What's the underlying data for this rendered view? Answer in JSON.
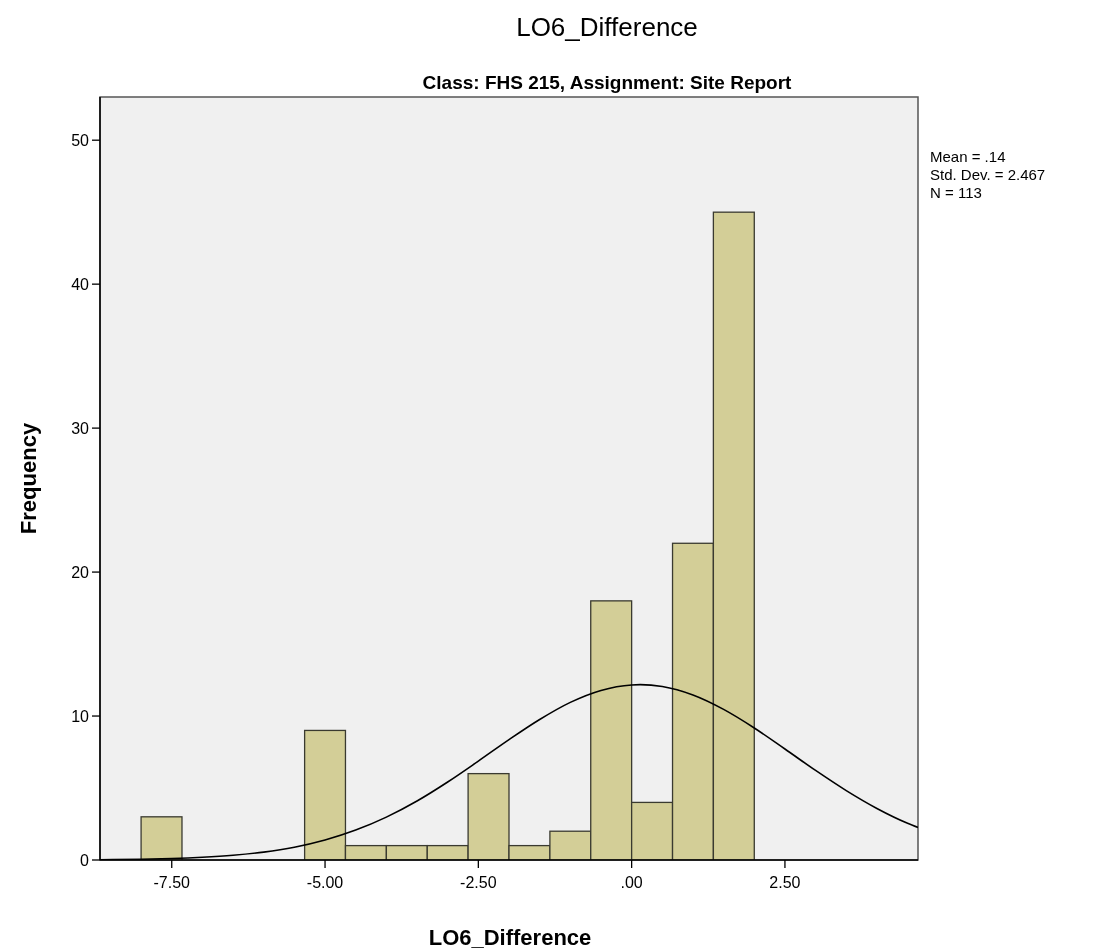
{
  "chart_data": {
    "type": "histogram",
    "title": "LO6_Difference",
    "subtitle": "Class: FHS 215, Assignment: Site Report",
    "xlabel": "LO6_Difference",
    "ylabel": "Frequency",
    "bins": [
      -8,
      -7.333,
      -6.667,
      -6,
      -5.333,
      -4.667,
      -4,
      -3.333,
      -2.667,
      -2,
      -1.333,
      -0.667,
      0,
      0.667,
      1.333,
      2
    ],
    "series": [
      {
        "color": "#d3ce97",
        "values": [
          3,
          0,
          0,
          0,
          9,
          1,
          1,
          1,
          6,
          1,
          2,
          18,
          4,
          22,
          45
        ]
      },
      {
        "type": "line",
        "color": "#000000",
        "x": [
          -8.67,
          -8,
          -7.5,
          -7,
          -6.5,
          -6,
          -5.5,
          -5,
          -4.5,
          -4,
          -3.5,
          -3,
          -2.5,
          -2,
          -1.5,
          -1,
          -0.5,
          0,
          0.14,
          0.5,
          1,
          1.5,
          2,
          2.5,
          3,
          3.5,
          4,
          4.5,
          4.67
        ],
        "values": [
          0.02,
          0.05,
          0.1,
          0.19,
          0.33,
          0.55,
          0.89,
          1.39,
          2.08,
          2.98,
          4.1,
          5.42,
          6.87,
          8.36,
          9.76,
          10.95,
          11.78,
          12.16,
          12.18,
          12.05,
          11.46,
          10.46,
          9.17,
          7.71,
          6.22,
          4.82,
          3.58,
          2.55,
          2.26
        ]
      }
    ],
    "xlim": [
      -8.67,
      4.67
    ],
    "ylim": [
      0,
      53
    ],
    "xticks": [
      {
        "value": -7.5,
        "label": "-7.50"
      },
      {
        "value": -5,
        "label": "-5.00"
      },
      {
        "value": -2.5,
        "label": "-2.50"
      },
      {
        "value": 0,
        "label": ".00"
      },
      {
        "value": 2.5,
        "label": "2.50"
      }
    ],
    "yticks": [
      0,
      10,
      20,
      30,
      40,
      50
    ],
    "grid": false,
    "annotations": [
      "Mean = .14",
      "Std. Dev. = 2.467",
      "N = 113"
    ]
  }
}
